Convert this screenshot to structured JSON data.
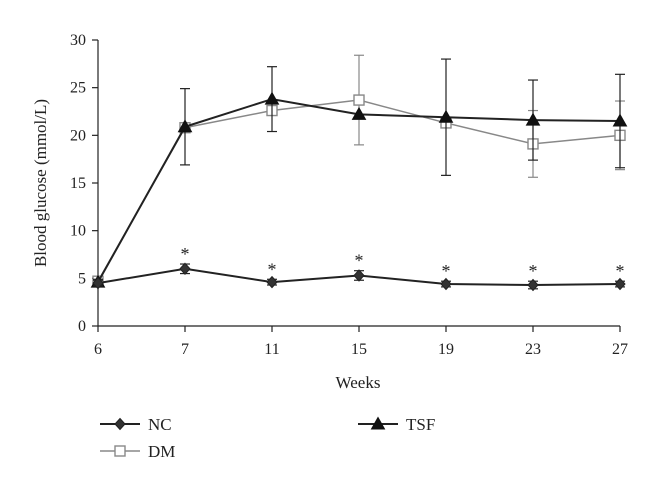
{
  "chart_data": {
    "type": "line",
    "title": "",
    "xlabel": "Weeks",
    "ylabel": "Blood glucose (mmol/L)",
    "categories": [
      "6",
      "7",
      "11",
      "15",
      "19",
      "23",
      "27"
    ],
    "ylim": [
      0,
      30
    ],
    "yticks": [
      0,
      5,
      10,
      15,
      20,
      25,
      30
    ],
    "grid": false,
    "legend_position": "bottom",
    "series": [
      {
        "name": "NC",
        "marker": "diamond",
        "color": "#222222",
        "values": [
          4.5,
          6.0,
          4.6,
          5.3,
          4.4,
          4.3,
          4.4
        ],
        "error": [
          0.3,
          0.5,
          0.3,
          0.5,
          0.3,
          0.4,
          0.3
        ],
        "significance": [
          "",
          "*",
          "*",
          "*",
          "*",
          "*",
          "*"
        ]
      },
      {
        "name": "DM",
        "marker": "open-square",
        "color": "#888888",
        "values": [
          4.7,
          20.8,
          22.6,
          23.7,
          21.3,
          19.1,
          20.0
        ],
        "error": [
          0.3,
          0.0,
          0.0,
          4.7,
          0.0,
          3.5,
          3.6
        ]
      },
      {
        "name": "TSF",
        "marker": "triangle",
        "color": "#222222",
        "values": [
          4.6,
          20.9,
          23.8,
          22.2,
          21.9,
          21.6,
          21.5
        ],
        "error": [
          0.3,
          4.0,
          3.4,
          0.0,
          6.1,
          4.2,
          4.9
        ]
      }
    ]
  }
}
